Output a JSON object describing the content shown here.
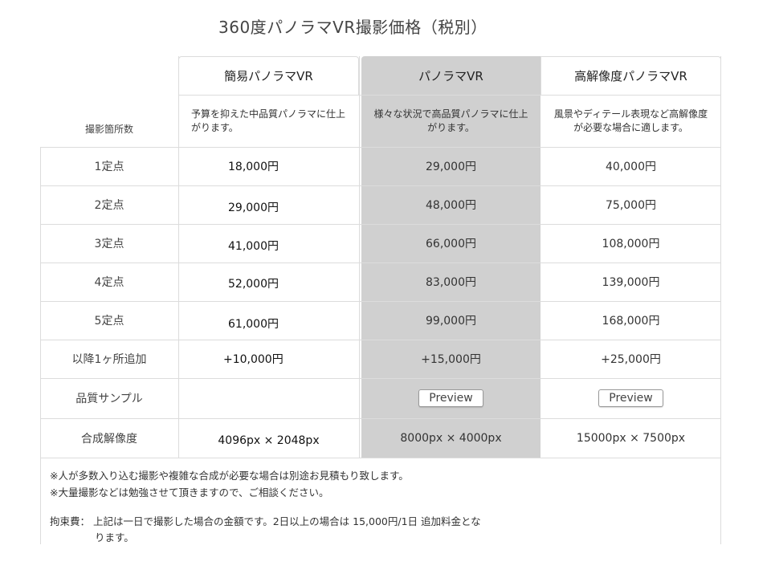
{
  "title": "360度パノラマVR撮影価格（税別）",
  "columns": [
    {
      "name": "簡易パノラマVR",
      "desc": "予算を抑えた中品質パノラマに仕上がります。"
    },
    {
      "name": "パノラマVR",
      "desc": "様々な状況で高品質パノラマに仕上がります。"
    },
    {
      "name": "高解像度パノラマVR",
      "desc": "風景やディテール表現など高解像度が必要な場合に適します。"
    }
  ],
  "row_header_label": "撮影箇所数",
  "rows": [
    {
      "label": "1定点",
      "values": [
        "18,000円",
        "29,000円",
        "40,000円"
      ]
    },
    {
      "label": "2定点",
      "values": [
        "29,000円",
        "48,000円",
        "75,000円"
      ]
    },
    {
      "label": "3定点",
      "values": [
        "41,000円",
        "66,000円",
        "108,000円"
      ]
    },
    {
      "label": "4定点",
      "values": [
        "52,000円",
        "83,000円",
        "139,000円"
      ]
    },
    {
      "label": "5定点",
      "values": [
        "61,000円",
        "99,000円",
        "168,000円"
      ]
    },
    {
      "label": "以降1ヶ所追加",
      "values": [
        "+10,000円",
        "+15,000円",
        "+25,000円"
      ]
    }
  ],
  "sample_row": {
    "label": "品質サンプル",
    "buttons": [
      "",
      "Preview",
      "Preview"
    ]
  },
  "resolution_row": {
    "label": "合成解像度",
    "values": [
      "4096px × 2048px",
      "8000px × 4000px",
      "15000px × 7500px"
    ]
  },
  "notes": [
    "※人が多数入り込む撮影や複雑な合成が必要な場合は別途お見積もり致します。",
    "※大量撮影などは勉強させて頂きますので、ご相談ください。",
    "拘束費： 上記は一日で撮影した場合の金額です。2日以上の場合は 15,000円/1日 追加料金とな",
    "ります。"
  ]
}
